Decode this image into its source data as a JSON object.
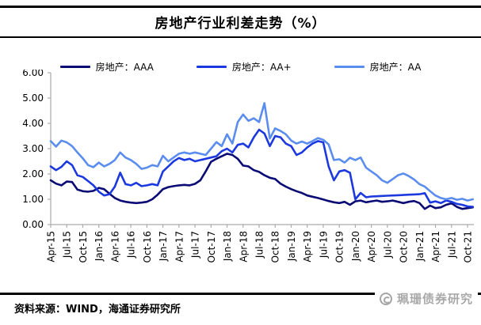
{
  "header": {
    "title": "房地产行业利差走势（%）"
  },
  "legend": {
    "position": "top",
    "items": [
      {
        "label": "房地产：AAA",
        "color": "#0a0a75"
      },
      {
        "label": "房地产：AA+",
        "color": "#1c39e0"
      },
      {
        "label": "房地产：AA",
        "color": "#5b8def"
      }
    ]
  },
  "footer": {
    "source_label": "资料来源：WIND，海通证券研究所"
  },
  "watermark": {
    "text": "珮珊债券研究",
    "logo": "circle-logo-icon",
    "color": "#a9a9a9"
  },
  "chart_data": {
    "type": "line",
    "title": "房地产行业利差走势（%）",
    "xlabel": "",
    "ylabel": "",
    "ylim": [
      0,
      6
    ],
    "grid": false,
    "legend_position": "top",
    "axis_color": "#ababab",
    "y_tick_labels": [
      "6.00",
      "5.00",
      "4.00",
      "3.00",
      "2.00",
      "1.00",
      "0.00"
    ],
    "x_tick_labels": [
      "Apr-15",
      "Jul-15",
      "Oct-15",
      "Jan-16",
      "Apr-16",
      "Jul-16",
      "Oct-16",
      "Jan-17",
      "Apr-17",
      "Jul-17",
      "Oct-17",
      "Jan-18",
      "Apr-18",
      "Jul-18",
      "Oct-18",
      "Jan-19",
      "Apr-19",
      "Jul-19",
      "Oct-19",
      "Jan-20",
      "Apr-20",
      "Jul-20",
      "Oct-20",
      "Jan-21",
      "Apr-21",
      "Jul-21",
      "Oct-21"
    ],
    "x_unit": "month (monthly points, ticks every 3 months)",
    "series": [
      {
        "name": "房地产：AAA",
        "color": "#0a0a75",
        "values": [
          1.75,
          1.62,
          1.55,
          1.7,
          1.68,
          1.38,
          1.32,
          1.3,
          1.33,
          1.45,
          1.4,
          1.22,
          1.05,
          0.95,
          0.9,
          0.87,
          0.85,
          0.87,
          0.9,
          1.0,
          1.18,
          1.4,
          1.48,
          1.52,
          1.55,
          1.57,
          1.55,
          1.61,
          1.75,
          2.1,
          2.48,
          2.6,
          2.7,
          2.8,
          2.75,
          2.6,
          2.33,
          2.3,
          2.15,
          2.08,
          1.95,
          1.85,
          1.8,
          1.62,
          1.5,
          1.4,
          1.32,
          1.25,
          1.15,
          1.1,
          1.05,
          0.99,
          0.93,
          0.88,
          0.85,
          0.9,
          0.78,
          0.92,
          0.95,
          0.88,
          0.92,
          0.95,
          0.9,
          0.92,
          0.95,
          0.9,
          0.85,
          0.9,
          0.93,
          0.85,
          0.62,
          0.75,
          0.65,
          0.68,
          0.78,
          0.84,
          0.7,
          0.62,
          0.65,
          0.68
        ]
      },
      {
        "name": "房地产：AA+",
        "color": "#1c39e0",
        "values": [
          2.3,
          2.15,
          2.28,
          2.5,
          2.35,
          1.95,
          1.88,
          1.72,
          1.55,
          1.3,
          1.15,
          1.2,
          1.5,
          2.05,
          1.6,
          1.55,
          1.65,
          1.52,
          1.55,
          1.6,
          1.55,
          2.1,
          2.3,
          2.5,
          2.63,
          2.55,
          2.6,
          2.5,
          2.55,
          2.6,
          2.65,
          2.7,
          2.9,
          3.0,
          2.85,
          3.15,
          3.2,
          3.05,
          3.45,
          3.75,
          3.6,
          3.1,
          3.5,
          3.45,
          3.2,
          3.1,
          2.75,
          2.85,
          3.05,
          3.2,
          3.3,
          3.25,
          2.3,
          1.75,
          2.1,
          2.15,
          2.05,
          1.0,
          1.25,
          1.08,
          1.11,
          1.12,
          1.13,
          1.14,
          1.15,
          1.16,
          1.17,
          1.18,
          1.19,
          1.2,
          1.24,
          0.87,
          0.92,
          0.85,
          0.95,
          0.9,
          0.82,
          0.78,
          0.72,
          0.7
        ]
      },
      {
        "name": "房地产：AA",
        "color": "#5b8def",
        "values": [
          3.3,
          3.08,
          3.32,
          3.25,
          3.1,
          2.85,
          2.62,
          2.35,
          2.27,
          2.45,
          2.3,
          2.4,
          2.55,
          2.85,
          2.65,
          2.55,
          2.4,
          2.2,
          2.25,
          2.35,
          2.3,
          2.72,
          2.5,
          2.65,
          2.8,
          2.85,
          2.8,
          2.85,
          2.8,
          2.75,
          3.0,
          3.26,
          3.1,
          3.57,
          3.2,
          4.05,
          4.35,
          4.1,
          4.2,
          4.05,
          4.8,
          3.4,
          3.8,
          3.7,
          3.57,
          3.32,
          3.2,
          3.28,
          3.2,
          3.3,
          3.42,
          3.35,
          3.17,
          2.55,
          2.58,
          2.45,
          2.64,
          2.55,
          2.65,
          2.25,
          2.1,
          1.95,
          1.75,
          1.65,
          1.8,
          1.95,
          2.02,
          1.92,
          1.78,
          1.6,
          1.5,
          1.32,
          1.15,
          1.05,
          1.0,
          1.05,
          0.98,
          1.02,
          0.95,
          1.0
        ]
      }
    ]
  }
}
